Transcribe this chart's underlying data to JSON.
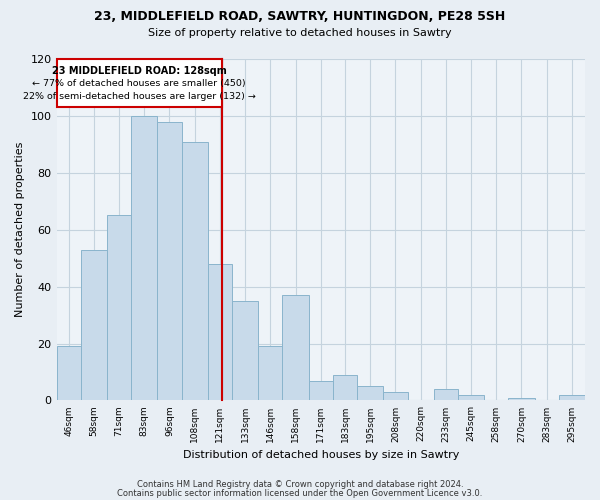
{
  "title": "23, MIDDLEFIELD ROAD, SAWTRY, HUNTINGDON, PE28 5SH",
  "subtitle": "Size of property relative to detached houses in Sawtry",
  "xlabel": "Distribution of detached houses by size in Sawtry",
  "ylabel": "Number of detached properties",
  "bar_labels": [
    "46sqm",
    "58sqm",
    "71sqm",
    "83sqm",
    "96sqm",
    "108sqm",
    "121sqm",
    "133sqm",
    "146sqm",
    "158sqm",
    "171sqm",
    "183sqm",
    "195sqm",
    "208sqm",
    "220sqm",
    "233sqm",
    "245sqm",
    "258sqm",
    "270sqm",
    "283sqm",
    "295sqm"
  ],
  "bar_values": [
    19,
    53,
    65,
    100,
    98,
    91,
    48,
    35,
    19,
    37,
    7,
    9,
    5,
    3,
    0,
    4,
    2,
    0,
    1,
    0,
    2
  ],
  "bar_color": "#c8daea",
  "bar_edge_color": "#8ab4cc",
  "annotation_title": "23 MIDDLEFIELD ROAD: 128sqm",
  "annotation_line1": "← 77% of detached houses are smaller (450)",
  "annotation_line2": "22% of semi-detached houses are larger (132) →",
  "annotation_box_edge_color": "#cc0000",
  "property_line_color": "#888888",
  "ylim": [
    0,
    120
  ],
  "yticks": [
    0,
    20,
    40,
    60,
    80,
    100,
    120
  ],
  "footer_line1": "Contains HM Land Registry data © Crown copyright and database right 2024.",
  "footer_line2": "Contains public sector information licensed under the Open Government Licence v3.0.",
  "bg_color": "#e8eef4",
  "plot_bg_color": "#eef3f8",
  "grid_color": "#c5d3de",
  "bin_edges": [
    46,
    58,
    71,
    83,
    96,
    108,
    121,
    133,
    146,
    158,
    171,
    183,
    195,
    208,
    220,
    233,
    245,
    258,
    270,
    283,
    295,
    308
  ]
}
